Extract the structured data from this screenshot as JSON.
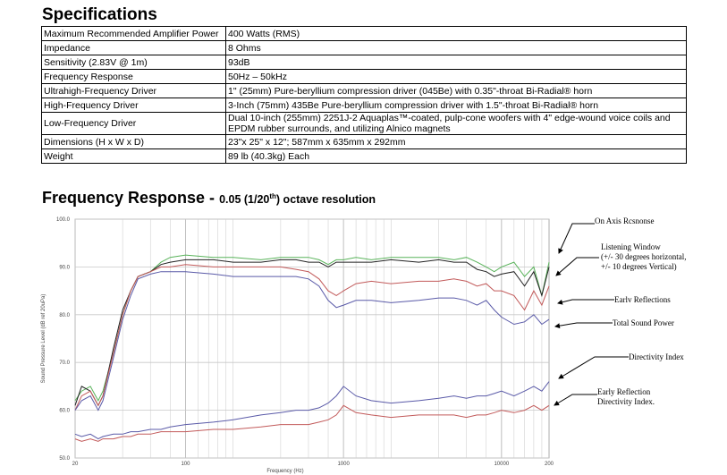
{
  "specs": {
    "title": "Specifications",
    "rows": [
      {
        "label": "Maximum Recommended Amplifier Power",
        "value": "400 Watts (RMS)"
      },
      {
        "label": "Impedance",
        "value": "8 Ohms"
      },
      {
        "label": "Sensitivity (2.83V @ 1m)",
        "value": "93dB"
      },
      {
        "label": "Frequency Response",
        "value": "50Hz – 50kHz"
      },
      {
        "label": "Ultrahigh-Frequency Driver",
        "value": "1\" (25mm) Pure-beryllium compression driver (045Be) with 0.35\"-throat Bi-Radial® horn"
      },
      {
        "label": "High-Frequency Driver",
        "value": "3-Inch (75mm) 435Be Pure-beryllium compression driver with 1.5\"-throat Bi-Radial® horn"
      },
      {
        "label": "Low-Frequency Driver",
        "value": "Dual 10-inch (255mm) 2251J-2 Aquaplas™-coated, pulp-cone woofers with 4\" edge-wound voice coils and EPDM rubber surrounds, and utilizing Alnico magnets"
      },
      {
        "label": "Dimensions (H x W x D)",
        "value": "23\"x 25\" x 12\"; 587mm x 635mm x 292mm"
      },
      {
        "label": "Weight",
        "value": "89 lb (40.3kg) Each"
      }
    ]
  },
  "freq": {
    "title": "Frequency Response - ",
    "subtitle_pre": "0.05 (1/20",
    "subtitle_sup": "th",
    "subtitle_post": ") octave resolution"
  },
  "chart_data": {
    "type": "line",
    "ylabel": "Sound Pressure Level (dB ref 20uPa)",
    "xlabel": "Frequency (Hz)",
    "x_scale": "log",
    "xlim": [
      20,
      20000
    ],
    "ylim": [
      50,
      100
    ],
    "x_ticks": [
      "20",
      "100",
      "1000",
      "10000",
      "200"
    ],
    "y_ticks": [
      "100.0",
      "90.0",
      "80.0",
      "70.0",
      "60.0",
      "50.0"
    ],
    "grid": true,
    "colors": {
      "green": "#59b35a",
      "black": "#222222",
      "red": "#c25a5a",
      "blue": "#5a5aa8"
    },
    "annotations": [
      {
        "lines": [
          "On Axis Rcsnonse"
        ]
      },
      {
        "lines": [
          "Listening Window",
          "(+/- 30 degrees horizontal,",
          "+/- 10 degrees Vertical)"
        ]
      },
      {
        "lines": [
          "Earlv Reflections"
        ]
      },
      {
        "lines": [
          "Total Sound Power"
        ]
      },
      {
        "lines": [
          "Directivity Index"
        ]
      },
      {
        "lines": [
          "Early Reflection",
          "Directivity Index."
        ]
      }
    ],
    "series": [
      {
        "color": "green",
        "x": [
          20,
          22,
          25,
          28,
          30,
          35,
          40,
          45,
          50,
          60,
          70,
          80,
          100,
          150,
          200,
          300,
          400,
          500,
          600,
          700,
          800,
          900,
          1000,
          1200,
          1500,
          2000,
          3000,
          4000,
          5000,
          6000,
          7000,
          8000,
          9000,
          10000,
          12000,
          14000,
          16000,
          18000,
          20000
        ],
        "y": [
          62,
          64,
          65,
          62,
          64,
          72,
          80,
          85,
          88,
          89,
          91,
          92,
          92.5,
          92,
          92,
          91.5,
          92,
          92,
          92,
          91.5,
          90.5,
          91.5,
          91.5,
          92,
          91.5,
          92,
          92,
          92,
          91.5,
          92,
          91,
          90,
          89,
          90,
          91,
          88,
          90,
          84,
          91
        ]
      },
      {
        "color": "black",
        "x": [
          20,
          22,
          25,
          28,
          30,
          35,
          40,
          45,
          50,
          60,
          70,
          80,
          100,
          150,
          200,
          300,
          400,
          500,
          600,
          700,
          800,
          900,
          1000,
          1200,
          1500,
          2000,
          3000,
          4000,
          5000,
          6000,
          7000,
          8000,
          9000,
          10000,
          12000,
          14000,
          16000,
          18000,
          20000
        ],
        "y": [
          61,
          65,
          64,
          61,
          63,
          73,
          81,
          85,
          88,
          89,
          90.5,
          91,
          91.5,
          91.5,
          91,
          91,
          91.5,
          91.5,
          91,
          91,
          90,
          91,
          91,
          91,
          91,
          91.5,
          91,
          91.5,
          91,
          91,
          89.5,
          89,
          88,
          88.5,
          89,
          86,
          89,
          84,
          90
        ]
      },
      {
        "color": "red",
        "x": [
          20,
          22,
          25,
          28,
          30,
          35,
          40,
          45,
          50,
          60,
          70,
          80,
          100,
          150,
          200,
          300,
          400,
          500,
          600,
          700,
          800,
          900,
          1000,
          1200,
          1500,
          2000,
          3000,
          4000,
          5000,
          6000,
          7000,
          8000,
          9000,
          10000,
          12000,
          14000,
          16000,
          18000,
          20000
        ],
        "y": [
          60,
          63,
          64,
          61,
          63,
          72,
          80,
          85,
          88,
          89,
          90,
          90,
          90.5,
          90,
          90,
          90,
          90,
          89.5,
          89,
          87.5,
          85,
          84,
          85,
          86.5,
          87,
          86.5,
          87,
          87,
          87.5,
          87,
          86,
          86.5,
          85,
          85,
          84,
          81,
          85,
          82,
          86
        ]
      },
      {
        "color": "blue",
        "x": [
          20,
          22,
          25,
          28,
          30,
          35,
          40,
          45,
          50,
          60,
          70,
          80,
          100,
          150,
          200,
          300,
          400,
          500,
          600,
          700,
          800,
          900,
          1000,
          1200,
          1500,
          2000,
          3000,
          4000,
          5000,
          6000,
          7000,
          8000,
          9000,
          10000,
          12000,
          14000,
          16000,
          18000,
          20000
        ],
        "y": [
          60,
          62,
          63,
          60,
          62,
          71,
          79,
          84,
          87.5,
          88.5,
          89,
          89,
          89,
          88.5,
          88,
          88,
          88,
          88,
          87.5,
          86,
          83,
          81.5,
          82,
          83,
          83,
          82.5,
          83,
          83.5,
          83.5,
          83,
          82,
          83,
          81,
          79.5,
          78,
          78.5,
          80,
          78,
          79
        ]
      },
      {
        "color": "red",
        "x": [
          20,
          22,
          25,
          28,
          30,
          35,
          40,
          45,
          50,
          60,
          70,
          80,
          100,
          150,
          200,
          300,
          400,
          500,
          600,
          700,
          800,
          900,
          1000,
          1200,
          1500,
          2000,
          3000,
          4000,
          5000,
          6000,
          7000,
          8000,
          9000,
          10000,
          12000,
          14000,
          16000,
          18000,
          20000
        ],
        "y": [
          54,
          53.5,
          54,
          53.5,
          54,
          54,
          54.5,
          54.5,
          55,
          55,
          55.5,
          55.5,
          55.5,
          56,
          56,
          56.5,
          57,
          57,
          57,
          57.5,
          58,
          59,
          61,
          59.5,
          59,
          58.5,
          59,
          59,
          59,
          58.5,
          59,
          59,
          59.5,
          60,
          59.5,
          60,
          61,
          60,
          61
        ]
      },
      {
        "color": "blue",
        "x": [
          20,
          22,
          25,
          28,
          30,
          35,
          40,
          45,
          50,
          60,
          70,
          80,
          100,
          150,
          200,
          300,
          400,
          500,
          600,
          700,
          800,
          900,
          1000,
          1200,
          1500,
          2000,
          3000,
          4000,
          5000,
          6000,
          7000,
          8000,
          9000,
          10000,
          12000,
          14000,
          16000,
          18000,
          20000
        ],
        "y": [
          55,
          54.5,
          55,
          54,
          54.5,
          55,
          55,
          55.5,
          55.5,
          56,
          56,
          56.5,
          57,
          57.5,
          58,
          59,
          59.5,
          60,
          60,
          60.5,
          61.5,
          63,
          65,
          63,
          62,
          61.5,
          62,
          62.5,
          63,
          62.5,
          63,
          63,
          63.5,
          64,
          63,
          64,
          65,
          64,
          66
        ]
      }
    ]
  }
}
